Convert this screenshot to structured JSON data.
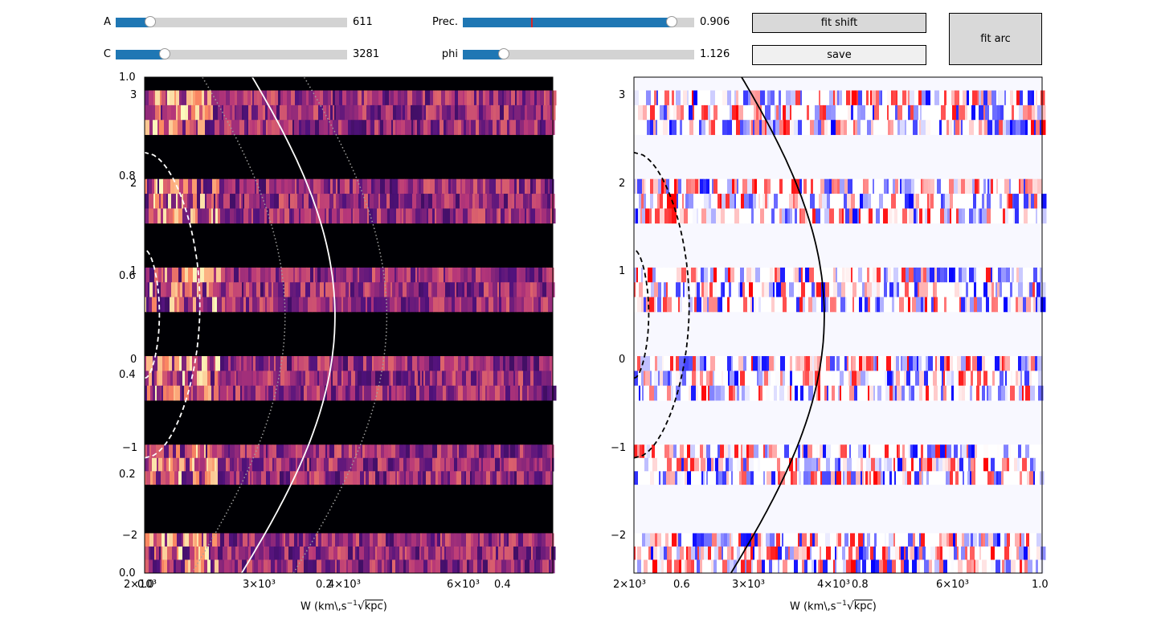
{
  "sliders": [
    {
      "id": "a",
      "label": "A",
      "value_text": "611",
      "fraction": 0.153
    },
    {
      "id": "c",
      "label": "C",
      "value_text": "3281",
      "fraction": 0.215
    },
    {
      "id": "prec",
      "label": "Prec.",
      "value_text": "0.906",
      "fraction": 0.906,
      "init_fraction": 0.3
    },
    {
      "id": "phi",
      "label": "phi",
      "value_text": "1.126",
      "fraction": 0.18
    }
  ],
  "buttons": {
    "fit_shift": "fit shift",
    "save": "save",
    "fit_arc": "fit arc"
  },
  "left_plot": {
    "xlabel": "W (km\\,s$^{-1}\\sqrt{\\rm kpc}$)",
    "left_ticks": [
      "1.0",
      "0.8",
      "0.6",
      "0.4",
      "0.2",
      "0.0"
    ],
    "phase_ticks": [
      "3",
      "2",
      "1",
      "0",
      "−1",
      "−2"
    ],
    "x_ticks": [
      "2×10³",
      "3×10³",
      "4×10³",
      "6×10³"
    ],
    "x_norm_ticks": [
      "0.0",
      "0.2",
      "0.4"
    ],
    "colormap": "magma"
  },
  "right_plot": {
    "xlabel": "W (km\\,s$^{-1}\\sqrt{\\rm kpc}$)",
    "phase_ticks": [
      "3",
      "2",
      "1",
      "0",
      "−1",
      "−2"
    ],
    "x_ticks": [
      "2×10³",
      "3×10³",
      "4×10³",
      "6×10³"
    ],
    "x_norm_ticks": [
      "0.6",
      "0.8",
      "1.0"
    ],
    "colormap": "bwr"
  },
  "chart_data": [
    {
      "type": "heatmap",
      "title": "",
      "xlabel": "W (km\\,s^-1 √kpc)",
      "ylabel": "",
      "xscale": "log",
      "xlim": [
        2000,
        7700
      ],
      "ylim": [
        -2.4,
        3.2
      ],
      "bands_y": [
        [
          2.55,
          3.05
        ],
        [
          1.55,
          2.05
        ],
        [
          0.55,
          1.05
        ],
        [
          -0.45,
          0.05
        ],
        [
          -1.4,
          -0.95
        ],
        [
          -2.4,
          -1.95
        ]
      ],
      "curves": [
        {
          "style": "solid",
          "color": "#ffffff",
          "center_x": 3750,
          "amp": 0.38
        },
        {
          "style": "dotted",
          "color": "#a0a0a0",
          "center_x": 4450,
          "amp": 0.38
        },
        {
          "style": "dotted",
          "color": "#a0a0a0",
          "center_x": 3180,
          "amp": 0.38
        },
        {
          "style": "dashed",
          "color": "#ffffff",
          "center_x": 2400,
          "amp": 0.34
        },
        {
          "style": "dashed",
          "color": "#ffffff",
          "center_x": 2100,
          "amp": 0.38
        }
      ]
    },
    {
      "type": "heatmap",
      "title": "",
      "xlabel": "W (km\\,s^-1 √kpc)",
      "ylabel": "",
      "xscale": "log",
      "xlim": [
        2000,
        7700
      ],
      "ylim": [
        -2.4,
        3.2
      ],
      "bands_y": [
        [
          2.55,
          3.05
        ],
        [
          1.55,
          2.05
        ],
        [
          0.55,
          1.05
        ],
        [
          -0.45,
          0.05
        ],
        [
          -1.4,
          -0.95
        ],
        [
          -2.4,
          -1.95
        ]
      ],
      "curves": [
        {
          "style": "solid",
          "color": "#000000",
          "center_x": 3750,
          "amp": 0.38
        },
        {
          "style": "dashed",
          "color": "#000000",
          "center_x": 2400,
          "amp": 0.34
        },
        {
          "style": "dashed",
          "color": "#000000",
          "center_x": 2100,
          "amp": 0.38
        }
      ]
    }
  ]
}
